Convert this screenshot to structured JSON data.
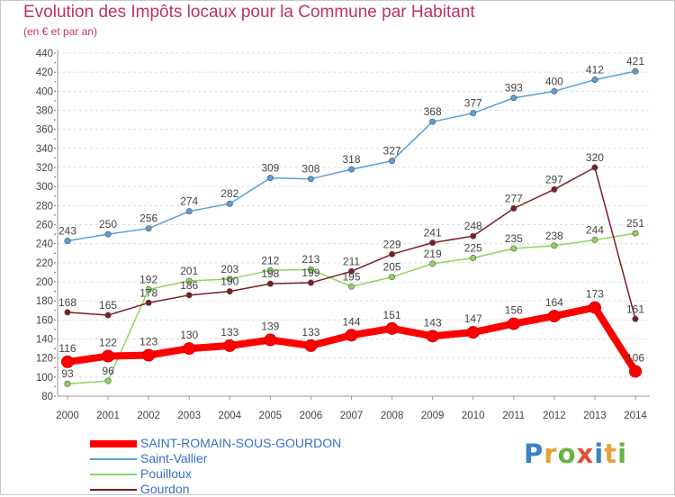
{
  "header": {
    "title": "Evolution des Impôts locaux pour la Commune par Habitant",
    "subtitle": "(en € et par an)"
  },
  "logo": {
    "letters": [
      "P",
      "r",
      "o",
      "x",
      "i",
      "t",
      "i"
    ],
    "colors": [
      "#3b82c4",
      "#e8a23a",
      "#66b345",
      "#e0503a",
      "#3b82c4",
      "#e8a23a",
      "#66b345"
    ]
  },
  "chart_data": {
    "type": "line",
    "title": "Evolution des Impôts locaux pour la Commune par Habitant",
    "subtitle": "(en € et par an)",
    "x": [
      "2000",
      "2001",
      "2002",
      "2003",
      "2004",
      "2005",
      "2006",
      "2007",
      "2008",
      "2009",
      "2010",
      "2011",
      "2012",
      "2013",
      "2014"
    ],
    "ylim": [
      80,
      440
    ],
    "yticks": [
      80,
      100,
      120,
      140,
      160,
      180,
      200,
      220,
      240,
      260,
      280,
      300,
      320,
      340,
      360,
      380,
      400,
      420,
      440
    ],
    "grid": "horizontal dashed",
    "legend": "bottom-left",
    "series": [
      {
        "name": "SAINT-ROMAIN-SOUS-GOURDON",
        "color": "#ff0000",
        "values": [
          116,
          122,
          123,
          130,
          133,
          139,
          133,
          144,
          151,
          143,
          147,
          156,
          164,
          173,
          106
        ]
      },
      {
        "name": "Saint-Vallier",
        "color": "#5a9fd8",
        "values": [
          243,
          250,
          256,
          274,
          282,
          309,
          308,
          318,
          327,
          368,
          377,
          393,
          400,
          412,
          421
        ]
      },
      {
        "name": "Pouilloux",
        "color": "#8ed462",
        "values": [
          93,
          96,
          192,
          201,
          203,
          212,
          213,
          195,
          205,
          219,
          225,
          235,
          238,
          244,
          251
        ]
      },
      {
        "name": "Gourdon",
        "color": "#7a1f24",
        "values": [
          168,
          165,
          178,
          186,
          190,
          198,
          199,
          211,
          229,
          241,
          248,
          277,
          297,
          320,
          161
        ]
      }
    ]
  }
}
